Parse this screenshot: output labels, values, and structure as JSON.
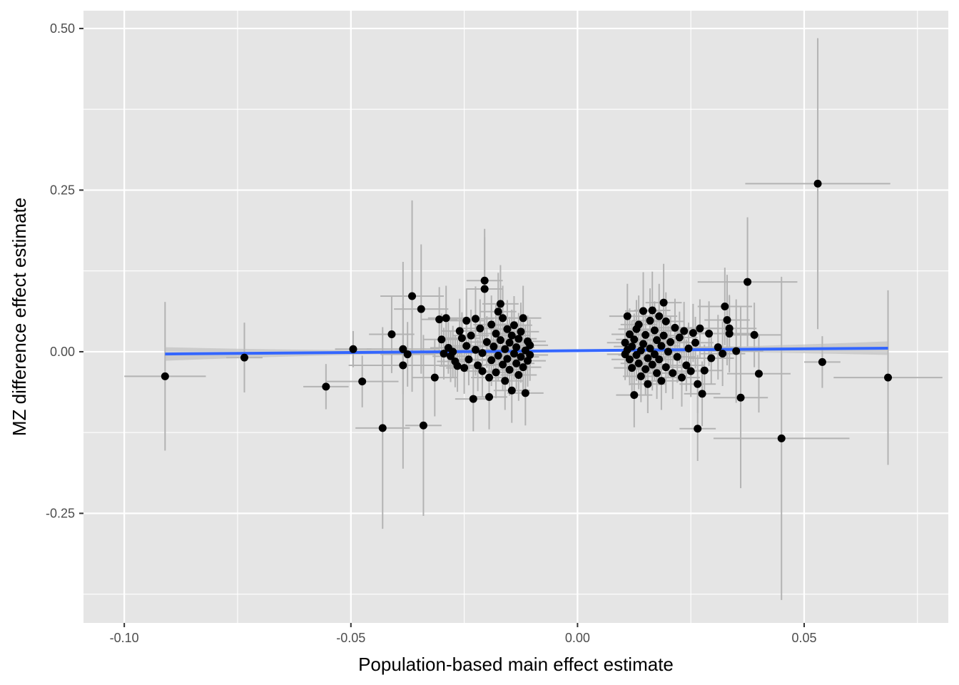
{
  "chart_data": {
    "type": "scatter",
    "title": "",
    "xlabel": "Population-based main effect estimate",
    "ylabel": "MZ difference effect estimate",
    "xlim": [
      -0.109,
      0.0818
    ],
    "ylim": [
      -0.4195,
      0.5275
    ],
    "x_ticks": [
      -0.1,
      -0.05,
      0.0,
      0.05
    ],
    "x_tick_labels": [
      "-0.10",
      "-0.05",
      "0.00",
      "0.05"
    ],
    "y_ticks": [
      -0.25,
      0.0,
      0.25,
      0.5
    ],
    "y_tick_labels": [
      "-0.25",
      "0.00",
      "0.25",
      "0.50"
    ],
    "grid": true,
    "legend": "none",
    "colors": {
      "panel": "#e5e5e5",
      "grid": "#ffffff",
      "point": "#000000",
      "errorbar": "#b3b3b3",
      "fit_line": "#3366ff",
      "ribbon": "#bdbdbd"
    },
    "fit": {
      "x": [
        -0.091,
        0.0685
      ],
      "y": [
        -0.0035,
        0.0055
      ]
    },
    "points": [
      {
        "x": -0.091,
        "y": -0.038,
        "xerr": 0.009,
        "yerr": 0.115
      },
      {
        "x": -0.0735,
        "y": -0.009,
        "xerr": 0.004,
        "yerr": 0.054
      },
      {
        "x": -0.0555,
        "y": -0.054,
        "xerr": 0.005,
        "yerr": 0.035
      },
      {
        "x": -0.0495,
        "y": 0.004,
        "xerr": 0.004,
        "yerr": 0.028
      },
      {
        "x": -0.0475,
        "y": -0.046,
        "xerr": 0.008,
        "yerr": 0.04
      },
      {
        "x": -0.043,
        "y": -0.118,
        "xerr": 0.006,
        "yerr": 0.156
      },
      {
        "x": -0.041,
        "y": 0.027,
        "xerr": 0.005,
        "yerr": 0.06
      },
      {
        "x": -0.0385,
        "y": 0.004,
        "xerr": 0.008,
        "yerr": 0.07
      },
      {
        "x": -0.0385,
        "y": -0.021,
        "xerr": 0.012,
        "yerr": 0.16
      },
      {
        "x": -0.0375,
        "y": -0.004,
        "xerr": 0.006,
        "yerr": 0.05
      },
      {
        "x": -0.0365,
        "y": 0.086,
        "xerr": 0.007,
        "yerr": 0.148
      },
      {
        "x": -0.0345,
        "y": 0.066,
        "xerr": 0.006,
        "yerr": 0.1
      },
      {
        "x": -0.034,
        "y": -0.114,
        "xerr": 0.004,
        "yerr": 0.14
      },
      {
        "x": -0.0315,
        "y": -0.04,
        "xerr": 0.005,
        "yerr": 0.06
      },
      {
        "x": -0.0305,
        "y": 0.05,
        "xerr": 0.004,
        "yerr": 0.05
      },
      {
        "x": -0.03,
        "y": 0.019,
        "xerr": 0.004,
        "yerr": 0.04
      },
      {
        "x": -0.0295,
        "y": -0.003,
        "xerr": 0.004,
        "yerr": 0.04
      },
      {
        "x": -0.029,
        "y": 0.052,
        "xerr": 0.004,
        "yerr": 0.05
      },
      {
        "x": -0.0285,
        "y": 0.006,
        "xerr": 0.004,
        "yerr": 0.04
      },
      {
        "x": -0.028,
        "y": -0.007,
        "xerr": 0.004,
        "yerr": 0.04
      },
      {
        "x": -0.0275,
        "y": 0.0,
        "xerr": 0.004,
        "yerr": 0.04
      },
      {
        "x": -0.027,
        "y": -0.015,
        "xerr": 0.004,
        "yerr": 0.04
      },
      {
        "x": -0.0265,
        "y": -0.022,
        "xerr": 0.004,
        "yerr": 0.04
      },
      {
        "x": -0.026,
        "y": 0.032,
        "xerr": 0.004,
        "yerr": 0.05
      },
      {
        "x": -0.0255,
        "y": 0.021,
        "xerr": 0.004,
        "yerr": 0.04
      },
      {
        "x": -0.025,
        "y": -0.025,
        "xerr": 0.004,
        "yerr": 0.04
      },
      {
        "x": -0.0245,
        "y": 0.048,
        "xerr": 0.004,
        "yerr": 0.05
      },
      {
        "x": -0.0245,
        "y": 0.009,
        "xerr": 0.004,
        "yerr": 0.04
      },
      {
        "x": -0.024,
        "y": -0.012,
        "xerr": 0.004,
        "yerr": 0.04
      },
      {
        "x": -0.0235,
        "y": 0.025,
        "xerr": 0.004,
        "yerr": 0.04
      },
      {
        "x": -0.023,
        "y": -0.073,
        "xerr": 0.004,
        "yerr": 0.05
      },
      {
        "x": -0.0225,
        "y": 0.051,
        "xerr": 0.004,
        "yerr": 0.05
      },
      {
        "x": -0.0225,
        "y": 0.003,
        "xerr": 0.004,
        "yerr": 0.04
      },
      {
        "x": -0.022,
        "y": -0.021,
        "xerr": 0.004,
        "yerr": 0.04
      },
      {
        "x": -0.0215,
        "y": 0.036,
        "xerr": 0.004,
        "yerr": 0.045
      },
      {
        "x": -0.021,
        "y": -0.002,
        "xerr": 0.004,
        "yerr": 0.04
      },
      {
        "x": -0.021,
        "y": -0.03,
        "xerr": 0.004,
        "yerr": 0.04
      },
      {
        "x": -0.0205,
        "y": 0.11,
        "xerr": 0.004,
        "yerr": 0.08
      },
      {
        "x": -0.0205,
        "y": 0.097,
        "xerr": 0.004,
        "yerr": 0.08
      },
      {
        "x": -0.02,
        "y": 0.015,
        "xerr": 0.004,
        "yerr": 0.04
      },
      {
        "x": -0.0195,
        "y": -0.04,
        "xerr": 0.004,
        "yerr": 0.04
      },
      {
        "x": -0.0195,
        "y": -0.07,
        "xerr": 0.004,
        "yerr": 0.05
      },
      {
        "x": -0.019,
        "y": 0.042,
        "xerr": 0.004,
        "yerr": 0.045
      },
      {
        "x": -0.019,
        "y": -0.013,
        "xerr": 0.004,
        "yerr": 0.04
      },
      {
        "x": -0.0185,
        "y": 0.008,
        "xerr": 0.004,
        "yerr": 0.04
      },
      {
        "x": -0.018,
        "y": -0.032,
        "xerr": 0.004,
        "yerr": 0.04
      },
      {
        "x": -0.018,
        "y": 0.028,
        "xerr": 0.004,
        "yerr": 0.045
      },
      {
        "x": -0.0175,
        "y": 0.062,
        "xerr": 0.004,
        "yerr": 0.06
      },
      {
        "x": -0.0175,
        "y": -0.006,
        "xerr": 0.004,
        "yerr": 0.04
      },
      {
        "x": -0.017,
        "y": 0.074,
        "xerr": 0.004,
        "yerr": 0.06
      },
      {
        "x": -0.017,
        "y": 0.018,
        "xerr": 0.004,
        "yerr": 0.04
      },
      {
        "x": -0.0165,
        "y": -0.02,
        "xerr": 0.004,
        "yerr": 0.04
      },
      {
        "x": -0.0165,
        "y": 0.052,
        "xerr": 0.004,
        "yerr": 0.05
      },
      {
        "x": -0.016,
        "y": 0.004,
        "xerr": 0.004,
        "yerr": 0.04
      },
      {
        "x": -0.016,
        "y": -0.045,
        "xerr": 0.004,
        "yerr": 0.045
      },
      {
        "x": -0.0155,
        "y": 0.035,
        "xerr": 0.004,
        "yerr": 0.045
      },
      {
        "x": -0.0155,
        "y": -0.011,
        "xerr": 0.004,
        "yerr": 0.04
      },
      {
        "x": -0.015,
        "y": 0.014,
        "xerr": 0.004,
        "yerr": 0.04
      },
      {
        "x": -0.015,
        "y": -0.028,
        "xerr": 0.004,
        "yerr": 0.04
      },
      {
        "x": -0.0145,
        "y": 0.025,
        "xerr": 0.004,
        "yerr": 0.04
      },
      {
        "x": -0.0145,
        "y": -0.06,
        "xerr": 0.004,
        "yerr": 0.05
      },
      {
        "x": -0.014,
        "y": -0.003,
        "xerr": 0.004,
        "yerr": 0.04
      },
      {
        "x": -0.014,
        "y": 0.041,
        "xerr": 0.004,
        "yerr": 0.045
      },
      {
        "x": -0.0135,
        "y": -0.018,
        "xerr": 0.004,
        "yerr": 0.04
      },
      {
        "x": -0.0135,
        "y": 0.007,
        "xerr": 0.004,
        "yerr": 0.04
      },
      {
        "x": -0.013,
        "y": -0.036,
        "xerr": 0.004,
        "yerr": 0.04
      },
      {
        "x": -0.013,
        "y": 0.02,
        "xerr": 0.004,
        "yerr": 0.04
      },
      {
        "x": -0.0125,
        "y": -0.008,
        "xerr": 0.004,
        "yerr": 0.04
      },
      {
        "x": -0.0125,
        "y": 0.031,
        "xerr": 0.004,
        "yerr": 0.045
      },
      {
        "x": -0.012,
        "y": -0.024,
        "xerr": 0.004,
        "yerr": 0.04
      },
      {
        "x": -0.012,
        "y": 0.052,
        "xerr": 0.004,
        "yerr": 0.05
      },
      {
        "x": -0.0115,
        "y": 0.002,
        "xerr": 0.004,
        "yerr": 0.04
      },
      {
        "x": -0.0115,
        "y": -0.064,
        "xerr": 0.004,
        "yerr": 0.05
      },
      {
        "x": -0.011,
        "y": 0.016,
        "xerr": 0.004,
        "yerr": 0.04
      },
      {
        "x": -0.011,
        "y": -0.014,
        "xerr": 0.004,
        "yerr": 0.04
      },
      {
        "x": -0.0105,
        "y": 0.01,
        "xerr": 0.004,
        "yerr": 0.04
      },
      {
        "x": -0.0105,
        "y": -0.005,
        "xerr": 0.004,
        "yerr": 0.04
      },
      {
        "x": 0.0105,
        "y": 0.014,
        "xerr": 0.004,
        "yerr": 0.04
      },
      {
        "x": 0.0105,
        "y": -0.004,
        "xerr": 0.004,
        "yerr": 0.04
      },
      {
        "x": 0.011,
        "y": 0.055,
        "xerr": 0.004,
        "yerr": 0.05
      },
      {
        "x": 0.011,
        "y": 0.003,
        "xerr": 0.004,
        "yerr": 0.04
      },
      {
        "x": 0.0115,
        "y": -0.012,
        "xerr": 0.004,
        "yerr": 0.04
      },
      {
        "x": 0.0115,
        "y": 0.027,
        "xerr": 0.004,
        "yerr": 0.04
      },
      {
        "x": 0.012,
        "y": -0.025,
        "xerr": 0.004,
        "yerr": 0.04
      },
      {
        "x": 0.012,
        "y": 0.008,
        "xerr": 0.004,
        "yerr": 0.04
      },
      {
        "x": 0.0125,
        "y": -0.067,
        "xerr": 0.004,
        "yerr": 0.05
      },
      {
        "x": 0.0125,
        "y": 0.019,
        "xerr": 0.004,
        "yerr": 0.04
      },
      {
        "x": 0.013,
        "y": -0.005,
        "xerr": 0.004,
        "yerr": 0.04
      },
      {
        "x": 0.013,
        "y": 0.035,
        "xerr": 0.004,
        "yerr": 0.045
      },
      {
        "x": 0.0135,
        "y": -0.018,
        "xerr": 0.004,
        "yerr": 0.04
      },
      {
        "x": 0.0135,
        "y": 0.042,
        "xerr": 0.004,
        "yerr": 0.045
      },
      {
        "x": 0.014,
        "y": 0.002,
        "xerr": 0.004,
        "yerr": 0.04
      },
      {
        "x": 0.014,
        "y": -0.038,
        "xerr": 0.004,
        "yerr": 0.04
      },
      {
        "x": 0.0145,
        "y": 0.063,
        "xerr": 0.004,
        "yerr": 0.06
      },
      {
        "x": 0.0145,
        "y": 0.012,
        "xerr": 0.004,
        "yerr": 0.04
      },
      {
        "x": 0.015,
        "y": -0.027,
        "xerr": 0.004,
        "yerr": 0.04
      },
      {
        "x": 0.015,
        "y": 0.026,
        "xerr": 0.004,
        "yerr": 0.04
      },
      {
        "x": 0.0155,
        "y": -0.01,
        "xerr": 0.004,
        "yerr": 0.04
      },
      {
        "x": 0.0155,
        "y": -0.05,
        "xerr": 0.004,
        "yerr": 0.045
      },
      {
        "x": 0.016,
        "y": 0.048,
        "xerr": 0.004,
        "yerr": 0.05
      },
      {
        "x": 0.016,
        "y": 0.005,
        "xerr": 0.004,
        "yerr": 0.04
      },
      {
        "x": 0.0165,
        "y": 0.064,
        "xerr": 0.004,
        "yerr": 0.06
      },
      {
        "x": 0.0165,
        "y": -0.02,
        "xerr": 0.004,
        "yerr": 0.04
      },
      {
        "x": 0.017,
        "y": 0.033,
        "xerr": 0.004,
        "yerr": 0.045
      },
      {
        "x": 0.017,
        "y": -0.004,
        "xerr": 0.004,
        "yerr": 0.04
      },
      {
        "x": 0.0175,
        "y": 0.018,
        "xerr": 0.004,
        "yerr": 0.04
      },
      {
        "x": 0.0175,
        "y": -0.033,
        "xerr": 0.004,
        "yerr": 0.04
      },
      {
        "x": 0.018,
        "y": 0.055,
        "xerr": 0.004,
        "yerr": 0.05
      },
      {
        "x": 0.018,
        "y": -0.012,
        "xerr": 0.004,
        "yerr": 0.04
      },
      {
        "x": 0.0185,
        "y": 0.009,
        "xerr": 0.004,
        "yerr": 0.04
      },
      {
        "x": 0.0185,
        "y": -0.045,
        "xerr": 0.004,
        "yerr": 0.045
      },
      {
        "x": 0.019,
        "y": 0.076,
        "xerr": 0.004,
        "yerr": 0.06
      },
      {
        "x": 0.019,
        "y": 0.025,
        "xerr": 0.004,
        "yerr": 0.04
      },
      {
        "x": 0.0195,
        "y": -0.024,
        "xerr": 0.004,
        "yerr": 0.04
      },
      {
        "x": 0.0195,
        "y": 0.047,
        "xerr": 0.004,
        "yerr": 0.045
      },
      {
        "x": 0.02,
        "y": 0.0,
        "xerr": 0.004,
        "yerr": 0.04
      },
      {
        "x": 0.0205,
        "y": 0.015,
        "xerr": 0.004,
        "yerr": 0.04
      },
      {
        "x": 0.021,
        "y": -0.033,
        "xerr": 0.004,
        "yerr": 0.04
      },
      {
        "x": 0.0215,
        "y": 0.037,
        "xerr": 0.004,
        "yerr": 0.045
      },
      {
        "x": 0.022,
        "y": -0.008,
        "xerr": 0.004,
        "yerr": 0.04
      },
      {
        "x": 0.0225,
        "y": 0.022,
        "xerr": 0.004,
        "yerr": 0.04
      },
      {
        "x": 0.023,
        "y": -0.04,
        "xerr": 0.004,
        "yerr": 0.045
      },
      {
        "x": 0.0235,
        "y": 0.032,
        "xerr": 0.004,
        "yerr": 0.045
      },
      {
        "x": 0.024,
        "y": -0.021,
        "xerr": 0.004,
        "yerr": 0.04
      },
      {
        "x": 0.0245,
        "y": 0.005,
        "xerr": 0.004,
        "yerr": 0.04
      },
      {
        "x": 0.025,
        "y": -0.03,
        "xerr": 0.004,
        "yerr": 0.04
      },
      {
        "x": 0.0255,
        "y": 0.029,
        "xerr": 0.004,
        "yerr": 0.045
      },
      {
        "x": 0.026,
        "y": 0.014,
        "xerr": 0.004,
        "yerr": 0.04
      },
      {
        "x": 0.0265,
        "y": -0.05,
        "xerr": 0.004,
        "yerr": 0.045
      },
      {
        "x": 0.0265,
        "y": -0.119,
        "xerr": 0.004,
        "yerr": 0.05
      },
      {
        "x": 0.027,
        "y": 0.036,
        "xerr": 0.004,
        "yerr": 0.045
      },
      {
        "x": 0.0275,
        "y": -0.065,
        "xerr": 0.004,
        "yerr": 0.05
      },
      {
        "x": 0.028,
        "y": -0.029,
        "xerr": 0.004,
        "yerr": 0.04
      },
      {
        "x": 0.029,
        "y": 0.028,
        "xerr": 0.005,
        "yerr": 0.05
      },
      {
        "x": 0.0295,
        "y": -0.01,
        "xerr": 0.005,
        "yerr": 0.04
      },
      {
        "x": 0.031,
        "y": 0.007,
        "xerr": 0.005,
        "yerr": 0.05
      },
      {
        "x": 0.032,
        "y": -0.003,
        "xerr": 0.005,
        "yerr": 0.05
      },
      {
        "x": 0.0325,
        "y": 0.07,
        "xerr": 0.006,
        "yerr": 0.06
      },
      {
        "x": 0.033,
        "y": 0.049,
        "xerr": 0.005,
        "yerr": 0.07
      },
      {
        "x": 0.0335,
        "y": 0.028,
        "xerr": 0.005,
        "yerr": 0.06
      },
      {
        "x": 0.0335,
        "y": 0.036,
        "xerr": 0.006,
        "yerr": 0.05
      },
      {
        "x": 0.035,
        "y": 0.001,
        "xerr": 0.006,
        "yerr": 0.08
      },
      {
        "x": 0.036,
        "y": -0.071,
        "xerr": 0.006,
        "yerr": 0.14
      },
      {
        "x": 0.0375,
        "y": 0.108,
        "xerr": 0.011,
        "yerr": 0.1
      },
      {
        "x": 0.039,
        "y": 0.026,
        "xerr": 0.006,
        "yerr": 0.05
      },
      {
        "x": 0.04,
        "y": -0.034,
        "xerr": 0.007,
        "yerr": 0.06
      },
      {
        "x": 0.045,
        "y": -0.134,
        "xerr": 0.015,
        "yerr": 0.25
      },
      {
        "x": 0.053,
        "y": 0.26,
        "xerr": 0.016,
        "yerr": 0.225
      },
      {
        "x": 0.054,
        "y": -0.016,
        "xerr": 0.004,
        "yerr": 0.04
      },
      {
        "x": 0.0685,
        "y": -0.04,
        "xerr": 0.012,
        "yerr": 0.135
      }
    ]
  }
}
